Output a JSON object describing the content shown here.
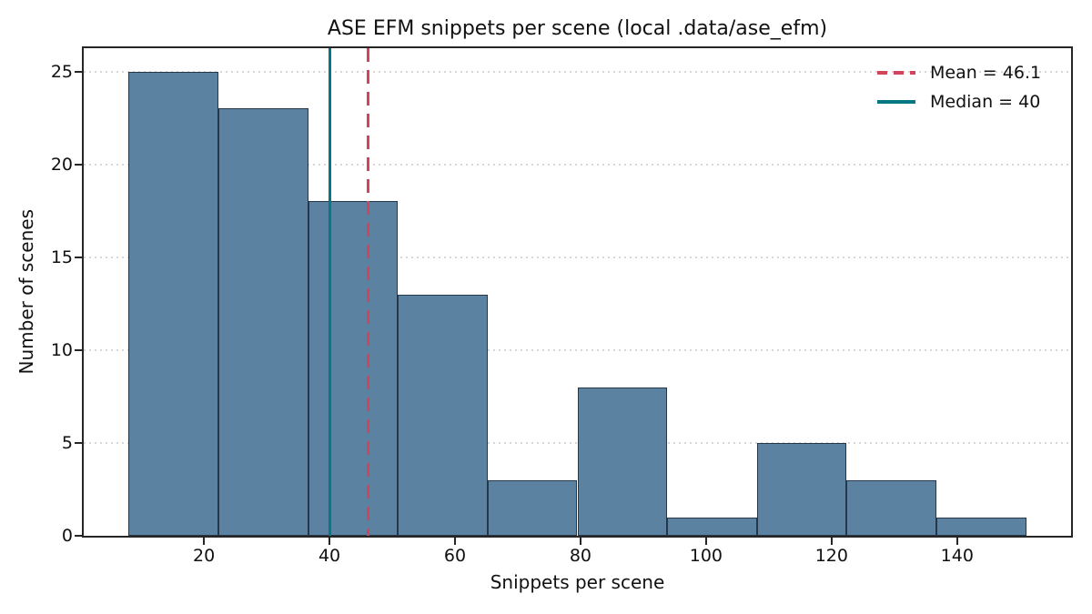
{
  "chart_data": {
    "type": "bar",
    "subtype": "histogram",
    "title": "ASE EFM snippets per scene (local .data/ase_efm)",
    "xlabel": "Snippets per scene",
    "ylabel": "Number of scenes",
    "bin_edges": [
      8.0,
      22.3,
      36.6,
      50.9,
      65.2,
      79.5,
      93.8,
      108.1,
      122.4,
      136.7,
      151.0
    ],
    "counts": [
      25,
      23,
      18,
      13,
      3,
      8,
      1,
      5,
      3,
      1
    ],
    "mean": 46.1,
    "median": 40,
    "xticks": [
      20,
      40,
      60,
      80,
      100,
      120,
      140
    ],
    "yticks": [
      0,
      5,
      10,
      15,
      20,
      25
    ],
    "xlim": [
      0.85,
      158.15
    ],
    "ylim": [
      0,
      26.25
    ],
    "grid": "horizontal-dotted",
    "legend_position": "upper right",
    "legend": [
      {
        "label": "Mean = 46.1",
        "style": "dashed",
        "color": "#D0455B"
      },
      {
        "label": "Median = 40",
        "style": "solid",
        "color": "#067885"
      }
    ],
    "colors": {
      "bar_fill": "#5C82A2",
      "bar_edge": "#263749",
      "mean_line": "#D0455B",
      "median_line": "#067885",
      "grid": "#D7D7D7",
      "spine": "#262626",
      "text": "#111111"
    }
  }
}
